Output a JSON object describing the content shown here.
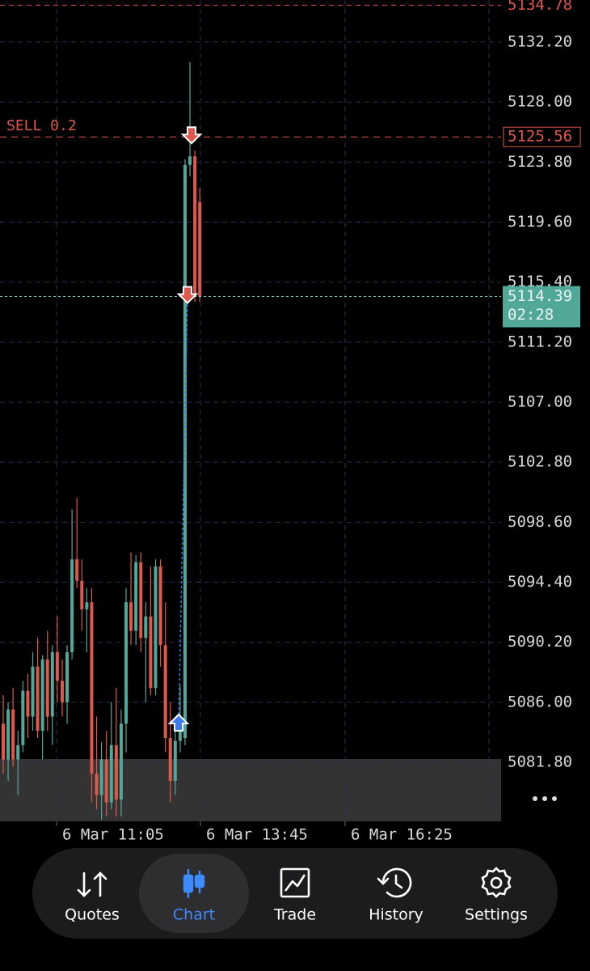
{
  "chart_data": {
    "type": "candlestick",
    "ylim": [
      5077.67,
      5135.14
    ],
    "yticks": [
      {
        "value": 5132.2,
        "label": "5132.20"
      },
      {
        "value": 5128,
        "label": "5128.00"
      },
      {
        "value": 5123.8,
        "label": "5123.80"
      },
      {
        "value": 5119.6,
        "label": "5119.60"
      },
      {
        "value": 5115.4,
        "label": "5115.40"
      },
      {
        "value": 5111.2,
        "label": "5111.20"
      },
      {
        "value": 5107,
        "label": "5107.00"
      },
      {
        "value": 5102.8,
        "label": "5102.80"
      },
      {
        "value": 5098.6,
        "label": "5098.60"
      },
      {
        "value": 5094.4,
        "label": "5094.40"
      },
      {
        "value": 5090.2,
        "label": "5090.20"
      },
      {
        "value": 5086,
        "label": "5086.00"
      },
      {
        "value": 5081.8,
        "label": "5081.80"
      }
    ],
    "xlabels": [
      "6 Mar 11:05",
      "6 Mar 13:45",
      "6 Mar 16:25"
    ],
    "grid": true,
    "up_color": "#52a898",
    "down_color": "#e0574c",
    "candles": [
      [
        5084.5,
        5086.5,
        5081,
        5082
      ],
      [
        5082,
        5086,
        5080.5,
        5085.5
      ],
      [
        5085.5,
        5087,
        5081.5,
        5082
      ],
      [
        5082,
        5084,
        5079.5,
        5083
      ],
      [
        5083,
        5087.5,
        5082.5,
        5086.8
      ],
      [
        5086.8,
        5088,
        5083.5,
        5085
      ],
      [
        5085,
        5089.5,
        5084,
        5088.5
      ],
      [
        5088.5,
        5090.5,
        5083.5,
        5084
      ],
      [
        5084,
        5089.3,
        5082,
        5089
      ],
      [
        5089,
        5091,
        5084,
        5085
      ],
      [
        5085,
        5090,
        5083,
        5089.5
      ],
      [
        5089.5,
        5092,
        5086,
        5087.5
      ],
      [
        5087.5,
        5089,
        5085,
        5086
      ],
      [
        5086,
        5090,
        5084.5,
        5089.5
      ],
      [
        5089.5,
        5099.5,
        5089,
        5096
      ],
      [
        5096,
        5100.3,
        5094,
        5094.5
      ],
      [
        5094.5,
        5096,
        5091,
        5092.5
      ],
      [
        5092.5,
        5094,
        5089.5,
        5093
      ],
      [
        5093,
        5094,
        5079,
        5081
      ],
      [
        5081,
        5085,
        5078.5,
        5079.5
      ],
      [
        5079.5,
        5083.2,
        5077.8,
        5082
      ],
      [
        5082,
        5084,
        5078,
        5079
      ],
      [
        5079,
        5086,
        5078.5,
        5083
      ],
      [
        5083,
        5087,
        5078,
        5079.2
      ],
      [
        5079.2,
        5085.5,
        5078,
        5084.5
      ],
      [
        5084.5,
        5094,
        5082.5,
        5093
      ],
      [
        5093,
        5096.5,
        5090,
        5091
      ],
      [
        5091,
        5096.3,
        5090,
        5095.8
      ],
      [
        5095.8,
        5096.5,
        5089.5,
        5090.5
      ],
      [
        5090.5,
        5093,
        5086,
        5092
      ],
      [
        5092,
        5095.5,
        5086.5,
        5087
      ],
      [
        5087,
        5096,
        5086.5,
        5095.5
      ],
      [
        5095.5,
        5096,
        5088.5,
        5090
      ],
      [
        5090,
        5093,
        5082.5,
        5083.5
      ],
      [
        5083.5,
        5086,
        5079,
        5080.5
      ],
      [
        5080.5,
        5084.5,
        5079.5,
        5083.3
      ],
      [
        5083.3,
        5087.2,
        5082.5,
        5084
      ],
      [
        5083.5,
        5124,
        5083,
        5123.6
      ],
      [
        5123.6,
        5130.8,
        5122.8,
        5124.2
      ],
      [
        5124.2,
        5124.6,
        5114,
        5114.4
      ],
      [
        5121,
        5122,
        5114,
        5114.39
      ]
    ],
    "top_level": {
      "value": 5134.78,
      "label": "5134.78"
    },
    "order": {
      "text": "SELL 0.2",
      "value": 5125.56,
      "label": "5125.56"
    },
    "current": {
      "value": 5114.39,
      "label": "5114.39",
      "countdown": "02:28"
    },
    "trades": [
      {
        "side": "buy",
        "price": 5084.46
      },
      {
        "side": "sell",
        "price": 5114.39
      },
      {
        "side": "sell",
        "price": 5125.56
      }
    ]
  },
  "nav": {
    "items": [
      "Quotes",
      "Chart",
      "Trade",
      "History",
      "Settings"
    ],
    "active": 1
  }
}
